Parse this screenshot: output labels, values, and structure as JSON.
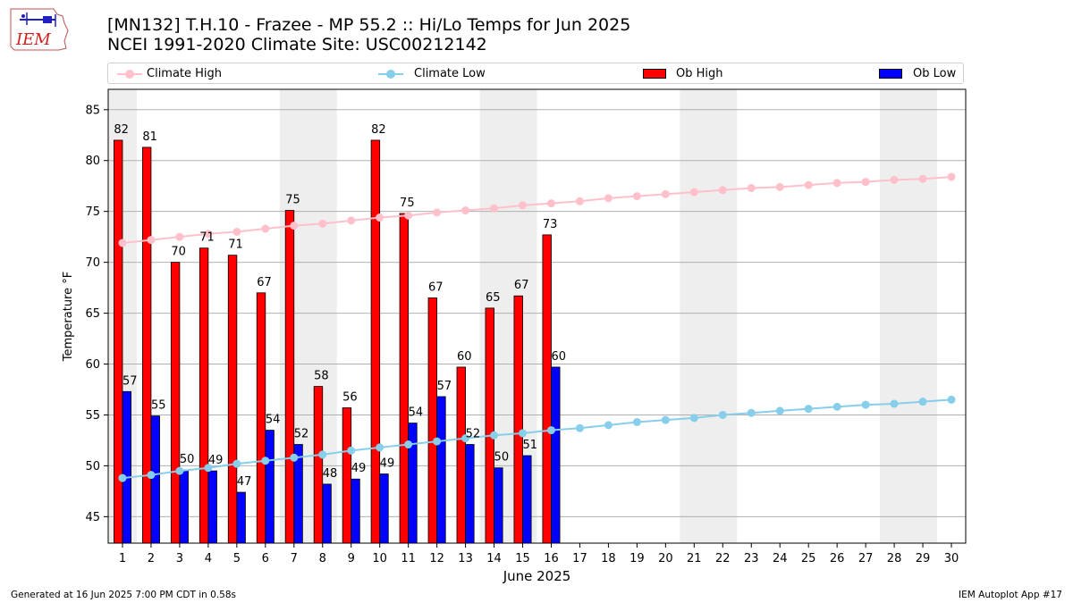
{
  "header": {
    "logo_text": "IEM",
    "title_line1": "[MN132] T.H.10 - Frazee - MP 55.2  :: Hi/Lo Temps for Jun 2025",
    "title_line2": "NCEI 1991-2020 Climate Site: USC00212142"
  },
  "legend": {
    "climate_high": "Climate High",
    "climate_low": "Climate Low",
    "ob_high": "Ob High",
    "ob_low": "Ob Low"
  },
  "colors": {
    "climate_high": "#ffc0cb",
    "climate_low": "#87ceeb",
    "ob_high": "#ff0000",
    "ob_low": "#0000ff",
    "weekend_shade": "#eeeeee",
    "grid": "#b0b0b0"
  },
  "chart_data": {
    "type": "bar",
    "xlabel": "June 2025",
    "ylabel": "Temperature °F",
    "ylim": [
      42.4,
      87
    ],
    "yticks": [
      45,
      50,
      55,
      60,
      65,
      70,
      75,
      80,
      85
    ],
    "xlim": [
      0.5,
      30.5
    ],
    "days": [
      1,
      2,
      3,
      4,
      5,
      6,
      7,
      8,
      9,
      10,
      11,
      12,
      13,
      14,
      15,
      16,
      17,
      18,
      19,
      20,
      21,
      22,
      23,
      24,
      25,
      26,
      27,
      28,
      29,
      30
    ],
    "grid": "horizontal",
    "legend_position": "top",
    "weekend_shading": [
      [
        1,
        1
      ],
      [
        7,
        8
      ],
      [
        14,
        15
      ],
      [
        21,
        22
      ],
      [
        28,
        29
      ]
    ],
    "series": [
      {
        "name": "Climate High",
        "kind": "line",
        "values": [
          71.9,
          72.2,
          72.5,
          72.8,
          73.0,
          73.3,
          73.6,
          73.8,
          74.1,
          74.4,
          74.6,
          74.9,
          75.1,
          75.3,
          75.6,
          75.8,
          76.0,
          76.3,
          76.5,
          76.7,
          76.9,
          77.1,
          77.3,
          77.4,
          77.6,
          77.8,
          77.9,
          78.1,
          78.2,
          78.4
        ]
      },
      {
        "name": "Climate Low",
        "kind": "line",
        "values": [
          48.8,
          49.1,
          49.5,
          49.8,
          50.2,
          50.5,
          50.8,
          51.1,
          51.5,
          51.8,
          52.1,
          52.4,
          52.7,
          53.0,
          53.2,
          53.5,
          53.7,
          54.0,
          54.3,
          54.5,
          54.7,
          55.0,
          55.2,
          55.4,
          55.6,
          55.8,
          56.0,
          56.1,
          56.3,
          56.5
        ]
      },
      {
        "name": "Ob High",
        "kind": "bar",
        "values": [
          82.0,
          81.3,
          70.0,
          71.4,
          70.7,
          67.0,
          75.1,
          57.8,
          55.7,
          82.0,
          74.8,
          66.5,
          59.7,
          65.5,
          66.7,
          72.7
        ],
        "labels": [
          "82",
          "81",
          "70",
          "71",
          "71",
          "67",
          "75",
          "58",
          "56",
          "82",
          "75",
          "67",
          "60",
          "65",
          "67",
          "73"
        ]
      },
      {
        "name": "Ob Low",
        "kind": "bar",
        "values": [
          57.3,
          54.9,
          49.6,
          49.5,
          47.4,
          53.5,
          52.1,
          48.2,
          48.7,
          49.2,
          54.2,
          56.8,
          52.1,
          49.8,
          51.0,
          59.7
        ],
        "labels": [
          "57",
          "55",
          "50",
          "49",
          "47",
          "54",
          "52",
          "48",
          "49",
          "49",
          "54",
          "57",
          "52",
          "50",
          "51",
          "60"
        ]
      }
    ]
  },
  "footer": {
    "left": "Generated at 16 Jun 2025 7:00 PM CDT in 0.58s",
    "right": "IEM Autoplot App #17"
  }
}
